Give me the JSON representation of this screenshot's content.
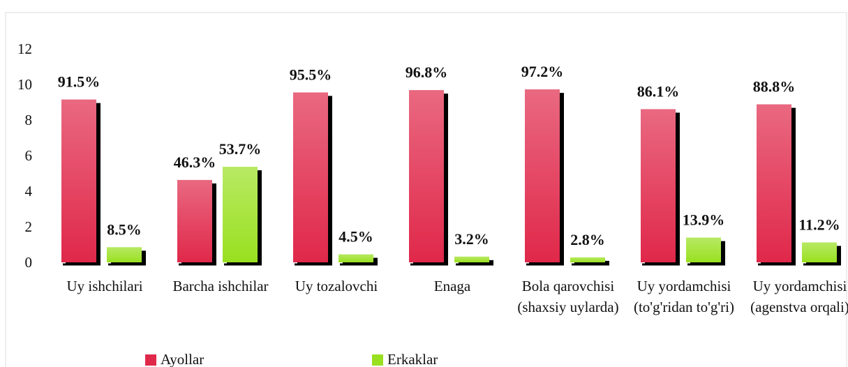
{
  "chart_data": {
    "type": "bar",
    "categories": [
      "Uy ishchilari",
      "Barcha ishchilar",
      "Uy tozalovchi",
      "Enaga",
      "Bola qarovchisi (shaxsiy uylarda)",
      "Uy yordamchisi (to'g'ridan to'g'ri)",
      "Uy yordamchisi (agenstva orqali)"
    ],
    "series": [
      {
        "name": "Ayollar",
        "color": "#e0284a",
        "values": [
          9.15,
          4.63,
          9.55,
          9.68,
          9.72,
          8.61,
          8.88
        ],
        "value_labels": [
          "91.5%",
          "46.3%",
          "95.5%",
          "96.8%",
          "97.2%",
          "86.1%",
          "88.8%"
        ]
      },
      {
        "name": "Erkaklar",
        "color": "#99e020",
        "values": [
          0.85,
          5.37,
          0.45,
          0.32,
          0.28,
          1.39,
          1.12
        ],
        "value_labels": [
          "8.5%",
          "53.7%",
          "4.5%",
          "3.2%",
          "2.8%",
          "13.9%",
          "11.2%"
        ]
      }
    ],
    "ylim": [
      0,
      12
    ],
    "yticks": [
      0,
      2,
      4,
      6,
      8,
      10,
      12
    ],
    "grid": false,
    "legend": "bottom"
  }
}
